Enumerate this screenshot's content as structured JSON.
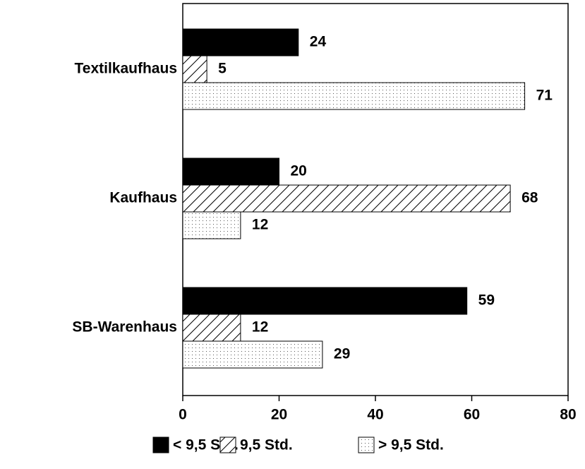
{
  "chart_data": {
    "type": "hbar",
    "categories": [
      "Textilkaufhaus",
      "Kaufhaus",
      "SB-Warenhaus"
    ],
    "series": [
      {
        "name": "< 9,5 Std.",
        "color": "#000000",
        "pattern": "solid",
        "values": [
          24,
          20,
          59
        ]
      },
      {
        "name": "9,5 Std.",
        "color": "#000000",
        "pattern": "hatch",
        "values": [
          5,
          68,
          12
        ]
      },
      {
        "name": "> 9,5 Std.",
        "color": "#000000",
        "pattern": "dots",
        "values": [
          71,
          12,
          29
        ]
      }
    ],
    "xlim": [
      0,
      80
    ],
    "xticks": [
      0,
      20,
      40,
      60,
      80
    ],
    "legend": "bottom"
  }
}
